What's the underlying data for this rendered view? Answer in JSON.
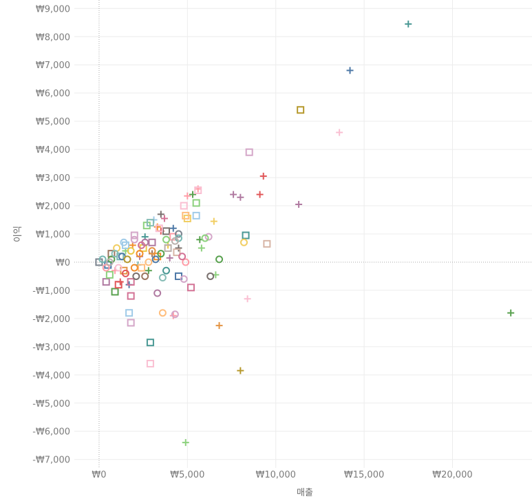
{
  "chart_data": {
    "type": "scatter",
    "title": "",
    "xlabel": "매출",
    "ylabel": "이익",
    "xlim": [
      -1400,
      24500
    ],
    "ylim": [
      -7300,
      9300
    ],
    "x_ticks": [
      0,
      5000,
      10000,
      15000,
      20000
    ],
    "x_tick_labels": [
      "₩0",
      "₩5,000",
      "₩10,000",
      "₩15,000",
      "₩20,000"
    ],
    "y_ticks": [
      9000,
      8000,
      7000,
      6000,
      5000,
      4000,
      3000,
      2000,
      1000,
      0,
      -1000,
      -2000,
      -3000,
      -4000,
      -5000,
      -6000,
      -7000
    ],
    "y_tick_labels": [
      "₩9,000",
      "₩8,000",
      "₩7,000",
      "₩6,000",
      "₩5,000",
      "₩4,000",
      "₩3,000",
      "₩2,000",
      "₩1,000",
      "₩0",
      "-₩1,000",
      "-₩2,000",
      "-₩3,000",
      "-₩4,000",
      "-₩5,000",
      "-₩6,000",
      "-₩7,000"
    ],
    "grid": true,
    "zero_lines": true,
    "palette": [
      "#4e79a7",
      "#f28e2b",
      "#e15759",
      "#76b7b2",
      "#59a14f",
      "#edc948",
      "#b07aa1",
      "#ff9da7",
      "#9c755f",
      "#bab0ac",
      "#499894",
      "#86bcb6",
      "#8cd17d",
      "#b6992d",
      "#f1ce63",
      "#a0cbe8",
      "#ffbe7d",
      "#d37295",
      "#fabfd2",
      "#d4a6c8",
      "#79706e",
      "#d7b5a6",
      "#e49444",
      "#7b848f",
      "#a87c9f"
    ],
    "series": [
      {
        "name": "plus",
        "marker": "plus",
        "points": [
          {
            "x": 17500,
            "y": 8450,
            "color": "#499894"
          },
          {
            "x": 14200,
            "y": 6800,
            "color": "#4e79a7"
          },
          {
            "x": 13600,
            "y": 4600,
            "color": "#fabfd2"
          },
          {
            "x": 23300,
            "y": -1800,
            "color": "#59a14f"
          },
          {
            "x": 9300,
            "y": 3050,
            "color": "#e15759"
          },
          {
            "x": 9100,
            "y": 2400,
            "color": "#e15759"
          },
          {
            "x": 11300,
            "y": 2050,
            "color": "#b07aa1"
          },
          {
            "x": 7600,
            "y": 2400,
            "color": "#b07aa1"
          },
          {
            "x": 8000,
            "y": 2300,
            "color": "#b07aa1"
          },
          {
            "x": 5600,
            "y": 2600,
            "color": "#ff9da7"
          },
          {
            "x": 5300,
            "y": 2400,
            "color": "#59a14f"
          },
          {
            "x": 5000,
            "y": 2350,
            "color": "#ff9da7"
          },
          {
            "x": 6500,
            "y": 1450,
            "color": "#f1ce63"
          },
          {
            "x": 5700,
            "y": 800,
            "color": "#59a14f"
          },
          {
            "x": 5800,
            "y": 500,
            "color": "#8cd17d"
          },
          {
            "x": 6600,
            "y": -450,
            "color": "#8cd17d"
          },
          {
            "x": 6800,
            "y": -2250,
            "color": "#e49444"
          },
          {
            "x": 8400,
            "y": -1300,
            "color": "#fabfd2"
          },
          {
            "x": 8000,
            "y": -3850,
            "color": "#b6992d"
          },
          {
            "x": 4900,
            "y": -6400,
            "color": "#8cd17d"
          },
          {
            "x": 3500,
            "y": 1700,
            "color": "#79706e"
          },
          {
            "x": 3700,
            "y": 1550,
            "color": "#d37295"
          },
          {
            "x": 4200,
            "y": 1200,
            "color": "#4e79a7"
          },
          {
            "x": 3100,
            "y": 1500,
            "color": "#a0cbe8"
          },
          {
            "x": 3300,
            "y": 1250,
            "color": "#f28e2b"
          },
          {
            "x": 3500,
            "y": 1100,
            "color": "#e15759"
          },
          {
            "x": 4500,
            "y": 500,
            "color": "#79706e"
          },
          {
            "x": 4000,
            "y": 150,
            "color": "#b07aa1"
          },
          {
            "x": 2800,
            "y": -300,
            "color": "#59a14f"
          },
          {
            "x": 4200,
            "y": -1900,
            "color": "#ff9da7"
          },
          {
            "x": 1700,
            "y": -800,
            "color": "#4e79a7"
          },
          {
            "x": 1200,
            "y": -700,
            "color": "#e15759"
          },
          {
            "x": 2300,
            "y": 200,
            "color": "#b07aa1"
          },
          {
            "x": 2600,
            "y": 900,
            "color": "#499894"
          },
          {
            "x": 1900,
            "y": 600,
            "color": "#f28e2b"
          },
          {
            "x": 3900,
            "y": 600,
            "color": "#edc948"
          },
          {
            "x": 2200,
            "y": -100,
            "color": "#76b7b2"
          },
          {
            "x": 1500,
            "y": 400,
            "color": "#8cd17d"
          },
          {
            "x": 900,
            "y": -300,
            "color": "#ff9da7"
          },
          {
            "x": 3000,
            "y": 300,
            "color": "#9c755f"
          }
        ]
      },
      {
        "name": "square",
        "marker": "square",
        "points": [
          {
            "x": 11400,
            "y": 5400,
            "color": "#b6992d"
          },
          {
            "x": 8500,
            "y": 3900,
            "color": "#d4a6c8"
          },
          {
            "x": 9500,
            "y": 650,
            "color": "#d7b5a6"
          },
          {
            "x": 8300,
            "y": 950,
            "color": "#499894"
          },
          {
            "x": 5500,
            "y": 2100,
            "color": "#8cd17d"
          },
          {
            "x": 4800,
            "y": 2000,
            "color": "#fabfd2"
          },
          {
            "x": 5500,
            "y": 1650,
            "color": "#a0cbe8"
          },
          {
            "x": 5000,
            "y": 1550,
            "color": "#f1ce63"
          },
          {
            "x": 4900,
            "y": 1650,
            "color": "#ffbe7d"
          },
          {
            "x": 5600,
            "y": 2550,
            "color": "#fabfd2"
          },
          {
            "x": 4500,
            "y": -500,
            "color": "#4e79a7"
          },
          {
            "x": 5200,
            "y": -900,
            "color": "#d37295"
          },
          {
            "x": 1700,
            "y": -1800,
            "color": "#a0cbe8"
          },
          {
            "x": 1800,
            "y": -2150,
            "color": "#d4a6c8"
          },
          {
            "x": 1800,
            "y": -1200,
            "color": "#d37295"
          },
          {
            "x": 2900,
            "y": -2850,
            "color": "#499894"
          },
          {
            "x": 2900,
            "y": -3600,
            "color": "#fabfd2"
          },
          {
            "x": 900,
            "y": -1050,
            "color": "#59a14f"
          },
          {
            "x": 400,
            "y": -700,
            "color": "#b07aa1"
          },
          {
            "x": 1100,
            "y": -800,
            "color": "#e15759"
          },
          {
            "x": 1800,
            "y": -700,
            "color": "#d37295"
          },
          {
            "x": 2700,
            "y": 1300,
            "color": "#8cd17d"
          },
          {
            "x": 3800,
            "y": 1100,
            "color": "#79706e"
          },
          {
            "x": 3400,
            "y": 1200,
            "color": "#fabfd2"
          },
          {
            "x": 2900,
            "y": 1400,
            "color": "#86bcb6"
          },
          {
            "x": 4200,
            "y": 900,
            "color": "#ff9da7"
          },
          {
            "x": 3900,
            "y": 500,
            "color": "#bab0ac"
          },
          {
            "x": 3300,
            "y": 200,
            "color": "#f28e2b"
          },
          {
            "x": 2000,
            "y": 950,
            "color": "#d4a6c8"
          },
          {
            "x": 1500,
            "y": 600,
            "color": "#a0cbe8"
          },
          {
            "x": 2500,
            "y": 500,
            "color": "#edc948"
          },
          {
            "x": 1200,
            "y": 200,
            "color": "#76b7b2"
          },
          {
            "x": 700,
            "y": 300,
            "color": "#9c755f"
          },
          {
            "x": 2400,
            "y": -200,
            "color": "#ffbe7d"
          },
          {
            "x": 1400,
            "y": -300,
            "color": "#e49444"
          },
          {
            "x": 500,
            "y": -100,
            "color": "#4e79a7"
          },
          {
            "x": 0,
            "y": 0,
            "color": "#7b848f"
          },
          {
            "x": 3000,
            "y": 700,
            "color": "#b07aa1"
          },
          {
            "x": 4400,
            "y": 350,
            "color": "#d7b5a6"
          },
          {
            "x": 600,
            "y": -450,
            "color": "#8cd17d"
          }
        ]
      },
      {
        "name": "circle",
        "marker": "circle",
        "points": [
          {
            "x": 8200,
            "y": 700,
            "color": "#f1ce63"
          },
          {
            "x": 6800,
            "y": 100,
            "color": "#59a14f"
          },
          {
            "x": 6300,
            "y": -500,
            "color": "#79706e"
          },
          {
            "x": 6200,
            "y": 900,
            "color": "#d4a6c8"
          },
          {
            "x": 6000,
            "y": 850,
            "color": "#8cd17d"
          },
          {
            "x": 4800,
            "y": -600,
            "color": "#d4a6c8"
          },
          {
            "x": 4900,
            "y": 0,
            "color": "#ff9da7"
          },
          {
            "x": 4700,
            "y": 200,
            "color": "#d37295"
          },
          {
            "x": 3600,
            "y": -1800,
            "color": "#ffbe7d"
          },
          {
            "x": 4300,
            "y": -1850,
            "color": "#d4a6c8"
          },
          {
            "x": 3300,
            "y": -1100,
            "color": "#b07aa1"
          },
          {
            "x": 3600,
            "y": -550,
            "color": "#86bcb6"
          },
          {
            "x": 3800,
            "y": -300,
            "color": "#499894"
          },
          {
            "x": 3800,
            "y": 800,
            "color": "#8cd17d"
          },
          {
            "x": 4500,
            "y": 1000,
            "color": "#7b848f"
          },
          {
            "x": 4500,
            "y": 850,
            "color": "#76b7b2"
          },
          {
            "x": 4300,
            "y": 750,
            "color": "#bab0ac"
          },
          {
            "x": 2600,
            "y": 700,
            "color": "#b07aa1"
          },
          {
            "x": 2300,
            "y": 300,
            "color": "#f28e2b"
          },
          {
            "x": 2100,
            "y": -500,
            "color": "#79706e"
          },
          {
            "x": 2600,
            "y": -500,
            "color": "#9c755f"
          },
          {
            "x": 1500,
            "y": -400,
            "color": "#e15759"
          },
          {
            "x": 1300,
            "y": 200,
            "color": "#4e79a7"
          },
          {
            "x": 1000,
            "y": 500,
            "color": "#f1ce63"
          },
          {
            "x": 700,
            "y": 100,
            "color": "#59a14f"
          },
          {
            "x": 400,
            "y": -200,
            "color": "#ff9da7"
          },
          {
            "x": 200,
            "y": 100,
            "color": "#76b7b2"
          },
          {
            "x": 1800,
            "y": 400,
            "color": "#edc948"
          },
          {
            "x": 2000,
            "y": 800,
            "color": "#d4a6c8"
          },
          {
            "x": 3000,
            "y": 400,
            "color": "#e49444"
          },
          {
            "x": 3200,
            "y": 100,
            "color": "#4e79a7"
          },
          {
            "x": 2800,
            "y": 0,
            "color": "#ffbe7d"
          },
          {
            "x": 1600,
            "y": 100,
            "color": "#b6992d"
          },
          {
            "x": 1100,
            "y": -200,
            "color": "#fabfd2"
          },
          {
            "x": 900,
            "y": 300,
            "color": "#86bcb6"
          },
          {
            "x": 2400,
            "y": 600,
            "color": "#d37295"
          },
          {
            "x": 1400,
            "y": 700,
            "color": "#a0cbe8"
          },
          {
            "x": 600,
            "y": 0,
            "color": "#bab0ac"
          },
          {
            "x": 3500,
            "y": 300,
            "color": "#59a14f"
          },
          {
            "x": 2000,
            "y": -200,
            "color": "#f28e2b"
          }
        ]
      }
    ]
  }
}
